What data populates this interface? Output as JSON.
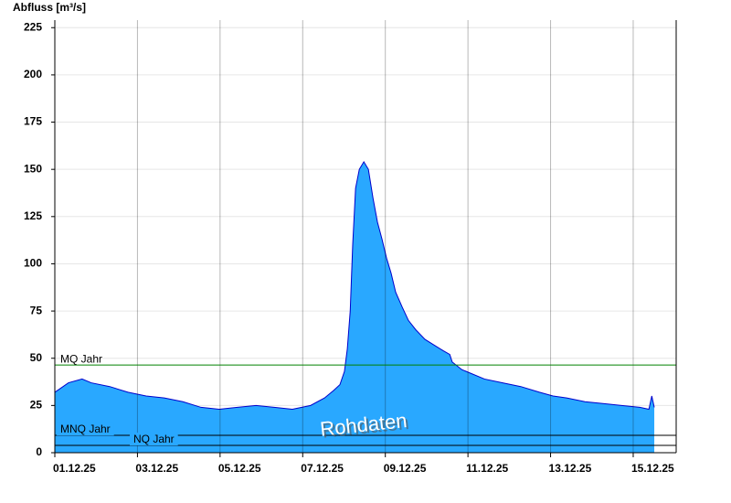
{
  "chart_data": {
    "type": "area",
    "y_label": "Abfluss [m³/s]",
    "annotation": "Rohdaten",
    "x": [
      0,
      0.33,
      0.66,
      0.88,
      1.33,
      1.77,
      2.21,
      2.65,
      3.1,
      3.54,
      3.98,
      4.42,
      4.87,
      5.31,
      5.75,
      6.19,
      6.53,
      6.75,
      6.9,
      7.01,
      7.08,
      7.15,
      7.21,
      7.28,
      7.37,
      7.48,
      7.59,
      7.7,
      7.81,
      7.92,
      8.03,
      8.14,
      8.25,
      8.41,
      8.56,
      8.74,
      8.96,
      9.18,
      9.4,
      9.56,
      9.62,
      9.85,
      10.07,
      10.4,
      10.84,
      11.28,
      11.73,
      12.06,
      12.39,
      12.83,
      13.27,
      13.72,
      14.16,
      14.38,
      14.45,
      14.51
    ],
    "values": [
      32,
      37,
      39,
      37,
      35,
      32,
      30,
      29,
      27,
      24,
      23,
      24,
      25,
      24,
      23,
      25,
      29,
      33,
      36,
      43,
      55,
      75,
      110,
      140,
      150,
      154,
      150,
      135,
      122,
      113,
      103,
      95,
      85,
      77,
      70,
      65,
      60,
      57,
      54,
      52,
      48,
      44,
      42,
      39,
      37,
      35,
      32,
      30,
      29,
      27,
      26,
      25,
      24,
      23,
      30,
      24
    ],
    "fill_color": "#29a8ff",
    "line_color": "#0000cc",
    "xlim": [
      0,
      15.04
    ],
    "ylim": [
      0,
      229
    ],
    "xticks": [
      {
        "value": 0,
        "label": "01.12.25"
      },
      {
        "value": 2,
        "label": "03.12.25"
      },
      {
        "value": 4,
        "label": "05.12.25"
      },
      {
        "value": 6,
        "label": "07.12.25"
      },
      {
        "value": 8,
        "label": "09.12.25"
      },
      {
        "value": 10,
        "label": "11.12.25"
      },
      {
        "value": 12,
        "label": "13.12.25"
      },
      {
        "value": 14,
        "label": "15.12.25"
      }
    ],
    "yticks": [
      0,
      25,
      50,
      75,
      100,
      125,
      150,
      175,
      200,
      225
    ],
    "grid": true,
    "reference_lines": [
      {
        "label": "MQ Jahr",
        "value": 46.4,
        "color": "#008000"
      },
      {
        "label": "MNQ Jahr",
        "value": 9.2,
        "color": "#000000"
      },
      {
        "label": "NQ Jahr",
        "value": 3.9,
        "color": "#000000"
      }
    ]
  }
}
